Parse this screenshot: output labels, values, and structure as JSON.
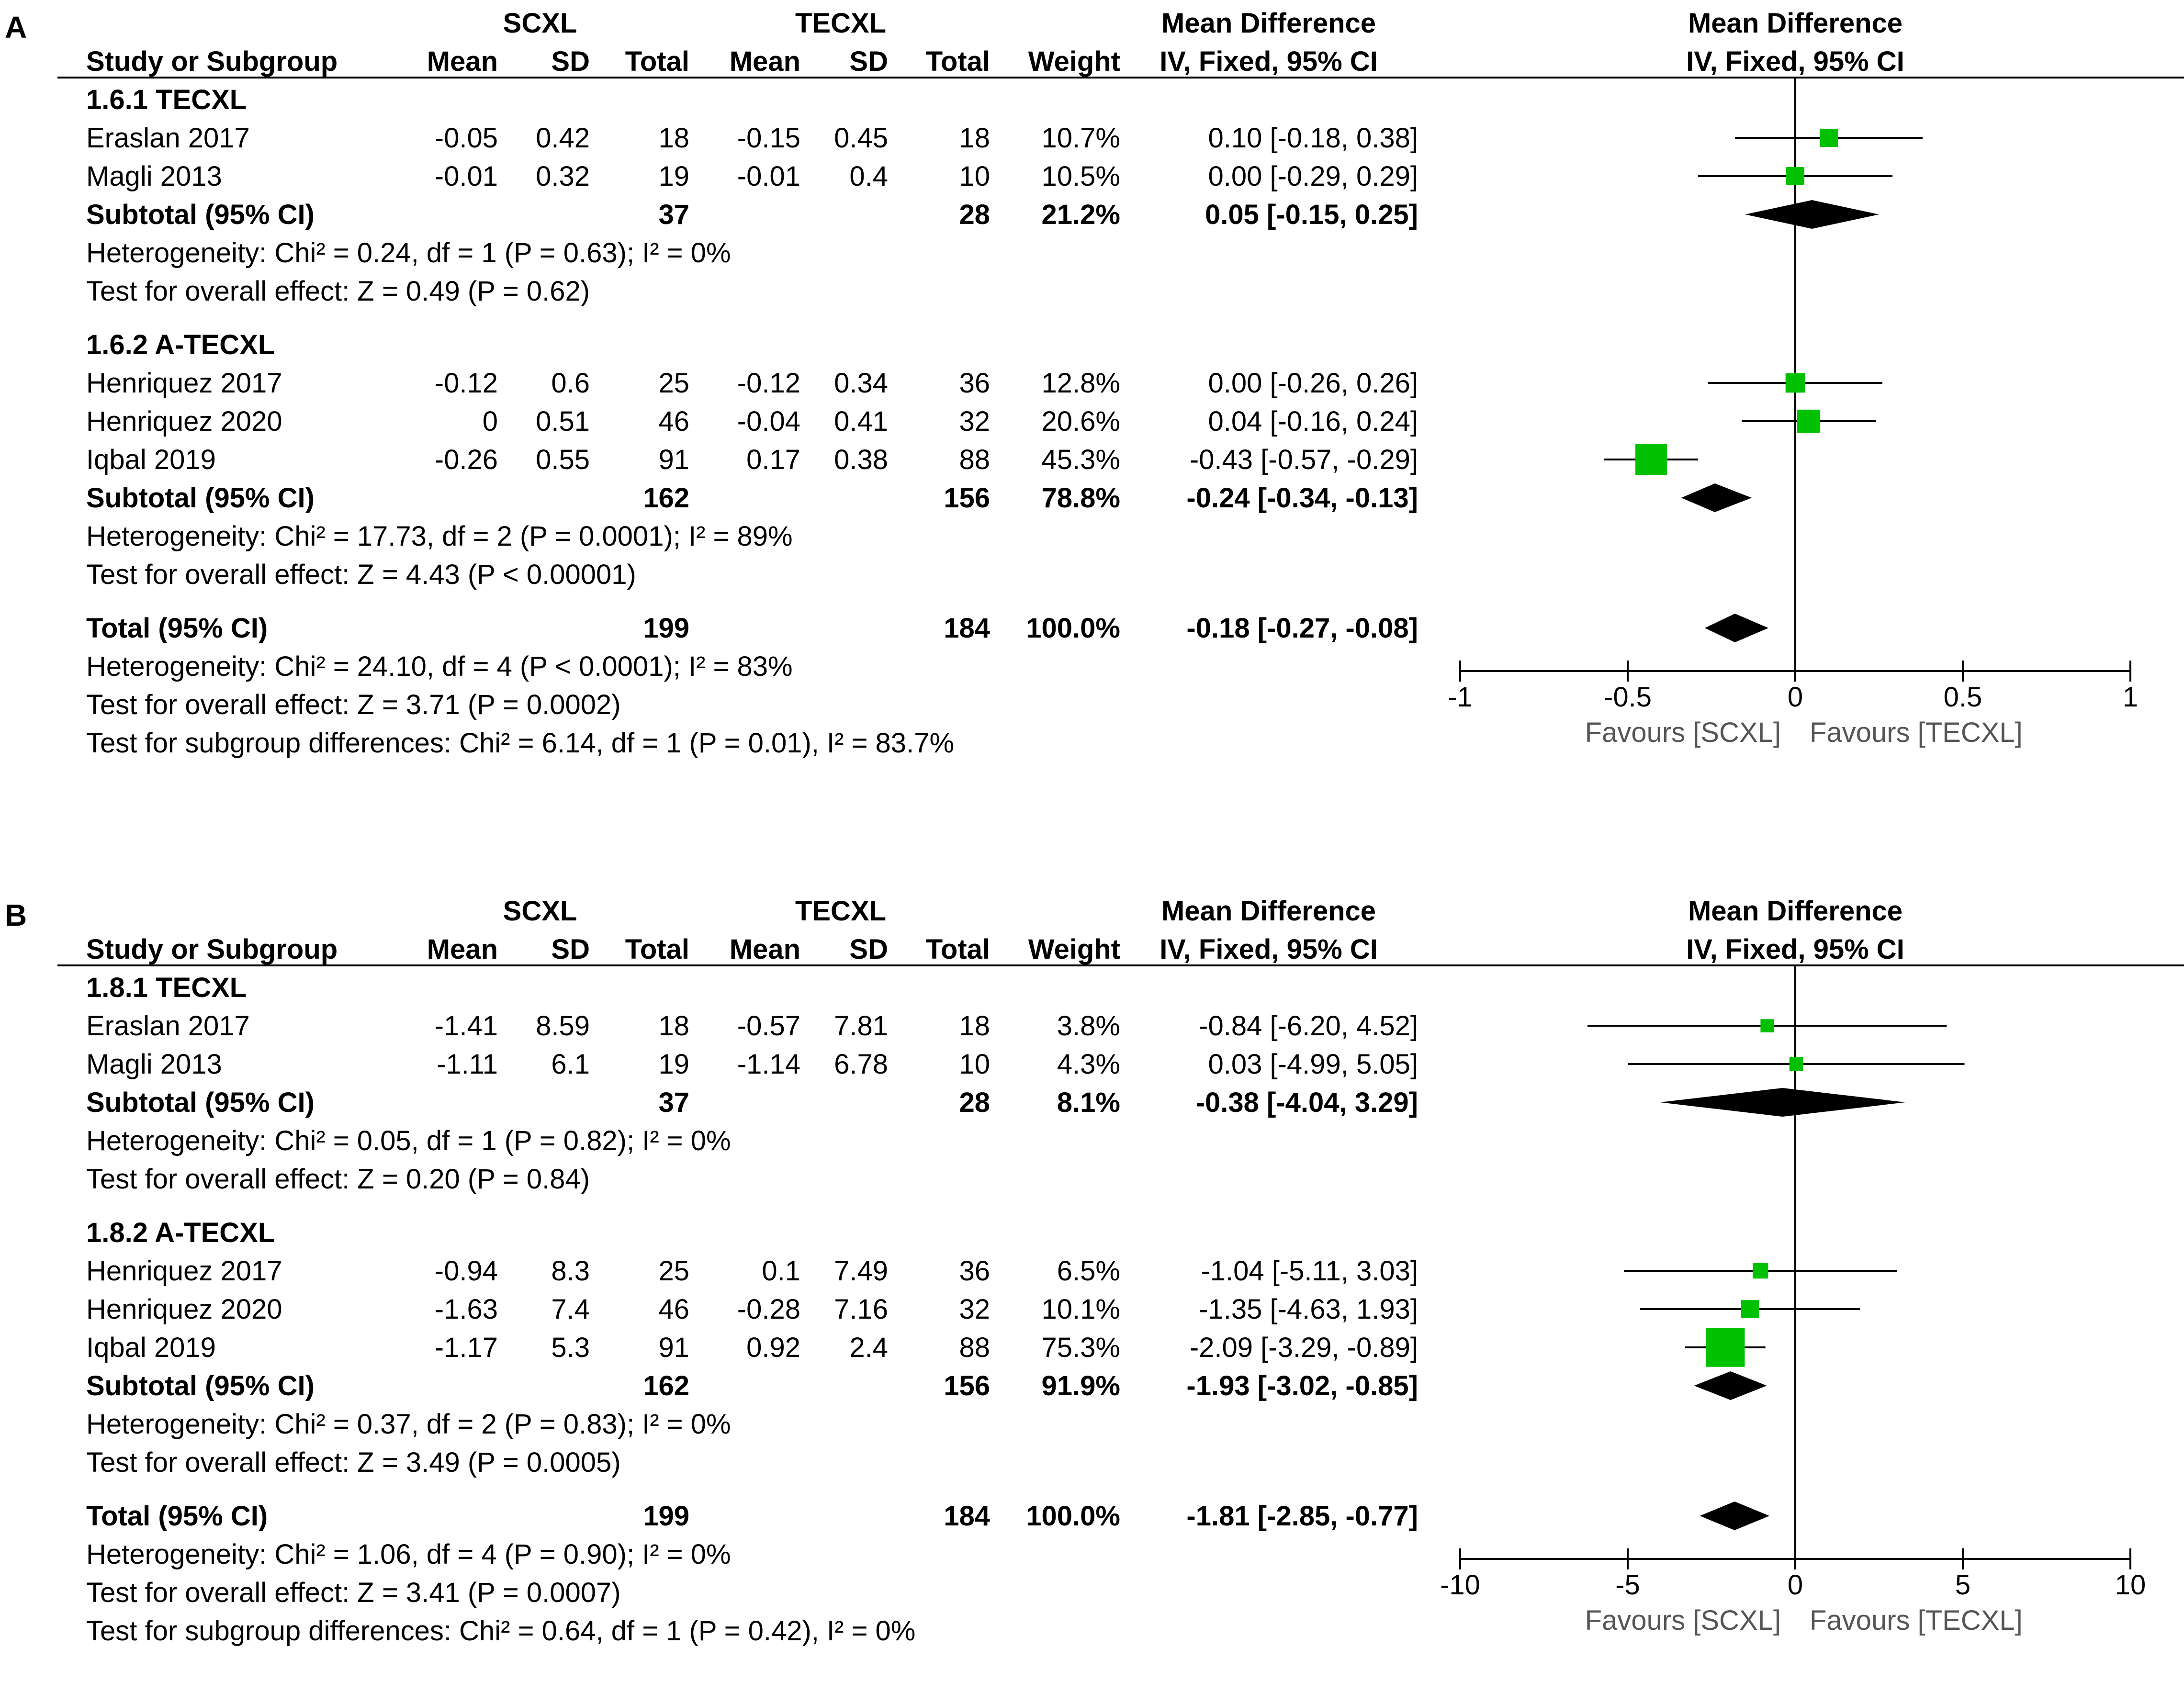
{
  "panels": [
    {
      "label": "A",
      "headers": {
        "group1": "SCXL",
        "group2": "TECXL",
        "md": "Mean Difference",
        "md_sub": "IV, Fixed, 95% CI",
        "plot": "Mean Difference",
        "plot_sub": "IV, Fixed, 95% CI",
        "study": "Study or Subgroup",
        "mean": "Mean",
        "sd": "SD",
        "total": "Total",
        "weight": "Weight"
      },
      "subgroups": [
        {
          "title": "1.6.1 TECXL",
          "studies": [
            {
              "name": "Eraslan 2017",
              "m1": "-0.05",
              "sd1": "0.42",
              "n1": "18",
              "m2": "-0.15",
              "sd2": "0.45",
              "n2": "18",
              "weight": "10.7%",
              "ci": "0.10 [-0.18, 0.38]",
              "est": 0.1,
              "lo": -0.18,
              "hi": 0.38,
              "w": 10.7
            },
            {
              "name": "Magli 2013",
              "m1": "-0.01",
              "sd1": "0.32",
              "n1": "19",
              "m2": "-0.01",
              "sd2": "0.4",
              "n2": "10",
              "weight": "10.5%",
              "ci": "0.00 [-0.29, 0.29]",
              "est": 0.0,
              "lo": -0.29,
              "hi": 0.29,
              "w": 10.5
            }
          ],
          "subtotal": {
            "label": "Subtotal (95% CI)",
            "n1": "37",
            "n2": "28",
            "weight": "21.2%",
            "ci": "0.05 [-0.15, 0.25]",
            "est": 0.05,
            "lo": -0.15,
            "hi": 0.25
          },
          "het": "Heterogeneity: Chi² = 0.24, df = 1 (P = 0.63); I² = 0%",
          "test": "Test for overall effect: Z = 0.49 (P = 0.62)"
        },
        {
          "title": "1.6.2 A-TECXL",
          "studies": [
            {
              "name": "Henriquez 2017",
              "m1": "-0.12",
              "sd1": "0.6",
              "n1": "25",
              "m2": "-0.12",
              "sd2": "0.34",
              "n2": "36",
              "weight": "12.8%",
              "ci": "0.00 [-0.26, 0.26]",
              "est": 0.0,
              "lo": -0.26,
              "hi": 0.26,
              "w": 12.8
            },
            {
              "name": "Henriquez 2020",
              "m1": "0",
              "sd1": "0.51",
              "n1": "46",
              "m2": "-0.04",
              "sd2": "0.41",
              "n2": "32",
              "weight": "20.6%",
              "ci": "0.04 [-0.16, 0.24]",
              "est": 0.04,
              "lo": -0.16,
              "hi": 0.24,
              "w": 20.6
            },
            {
              "name": "Iqbal 2019",
              "m1": "-0.26",
              "sd1": "0.55",
              "n1": "91",
              "m2": "0.17",
              "sd2": "0.38",
              "n2": "88",
              "weight": "45.3%",
              "ci": "-0.43 [-0.57, -0.29]",
              "est": -0.43,
              "lo": -0.57,
              "hi": -0.29,
              "w": 45.3
            }
          ],
          "subtotal": {
            "label": "Subtotal (95% CI)",
            "n1": "162",
            "n2": "156",
            "weight": "78.8%",
            "ci": "-0.24 [-0.34, -0.13]",
            "est": -0.24,
            "lo": -0.34,
            "hi": -0.13
          },
          "het": "Heterogeneity: Chi² = 17.73, df = 2 (P = 0.0001); I² = 89%",
          "test": "Test for overall effect: Z = 4.43 (P < 0.00001)"
        }
      ],
      "total": {
        "label": "Total (95% CI)",
        "n1": "199",
        "n2": "184",
        "weight": "100.0%",
        "ci": "-0.18 [-0.27, -0.08]",
        "est": -0.18,
        "lo": -0.27,
        "hi": -0.08
      },
      "total_het": "Heterogeneity: Chi² = 24.10, df = 4 (P < 0.0001); I² = 83%",
      "total_test": "Test for overall effect: Z = 3.71 (P = 0.0002)",
      "subgroup_diff": "Test for subgroup differences: Chi² = 6.14, df = 1 (P = 0.01), I² = 83.7%",
      "axis": {
        "min": -1,
        "max": 1,
        "ticks": [
          "-1",
          "-0.5",
          "0",
          "0.5",
          "1"
        ],
        "tick_values": [
          -1,
          -0.5,
          0,
          0.5,
          1
        ],
        "favours_left": "Favours [SCXL]",
        "favours_right": "Favours [TECXL]"
      }
    },
    {
      "label": "B",
      "headers": {
        "group1": "SCXL",
        "group2": "TECXL",
        "md": "Mean Difference",
        "md_sub": "IV, Fixed, 95% CI",
        "plot": "Mean Difference",
        "plot_sub": "IV, Fixed, 95% CI",
        "study": "Study or Subgroup",
        "mean": "Mean",
        "sd": "SD",
        "total": "Total",
        "weight": "Weight"
      },
      "subgroups": [
        {
          "title": "1.8.1 TECXL",
          "studies": [
            {
              "name": "Eraslan 2017",
              "m1": "-1.41",
              "sd1": "8.59",
              "n1": "18",
              "m2": "-0.57",
              "sd2": "7.81",
              "n2": "18",
              "weight": "3.8%",
              "ci": "-0.84 [-6.20, 4.52]",
              "est": -0.84,
              "lo": -6.2,
              "hi": 4.52,
              "w": 3.8
            },
            {
              "name": "Magli 2013",
              "m1": "-1.11",
              "sd1": "6.1",
              "n1": "19",
              "m2": "-1.14",
              "sd2": "6.78",
              "n2": "10",
              "weight": "4.3%",
              "ci": "0.03 [-4.99, 5.05]",
              "est": 0.03,
              "lo": -4.99,
              "hi": 5.05,
              "w": 4.3
            }
          ],
          "subtotal": {
            "label": "Subtotal (95% CI)",
            "n1": "37",
            "n2": "28",
            "weight": "8.1%",
            "ci": "-0.38 [-4.04, 3.29]",
            "est": -0.38,
            "lo": -4.04,
            "hi": 3.29
          },
          "het": "Heterogeneity: Chi² = 0.05, df = 1 (P = 0.82); I² = 0%",
          "test": "Test for overall effect: Z = 0.20 (P = 0.84)"
        },
        {
          "title": "1.8.2 A-TECXL",
          "studies": [
            {
              "name": "Henriquez 2017",
              "m1": "-0.94",
              "sd1": "8.3",
              "n1": "25",
              "m2": "0.1",
              "sd2": "7.49",
              "n2": "36",
              "weight": "6.5%",
              "ci": "-1.04 [-5.11, 3.03]",
              "est": -1.04,
              "lo": -5.11,
              "hi": 3.03,
              "w": 6.5
            },
            {
              "name": "Henriquez 2020",
              "m1": "-1.63",
              "sd1": "7.4",
              "n1": "46",
              "m2": "-0.28",
              "sd2": "7.16",
              "n2": "32",
              "weight": "10.1%",
              "ci": "-1.35 [-4.63, 1.93]",
              "est": -1.35,
              "lo": -4.63,
              "hi": 1.93,
              "w": 10.1
            },
            {
              "name": "Iqbal 2019",
              "m1": "-1.17",
              "sd1": "5.3",
              "n1": "91",
              "m2": "0.92",
              "sd2": "2.4",
              "n2": "88",
              "weight": "75.3%",
              "ci": "-2.09 [-3.29, -0.89]",
              "est": -2.09,
              "lo": -3.29,
              "hi": -0.89,
              "w": 75.3
            }
          ],
          "subtotal": {
            "label": "Subtotal (95% CI)",
            "n1": "162",
            "n2": "156",
            "weight": "91.9%",
            "ci": "-1.93 [-3.02, -0.85]",
            "est": -1.93,
            "lo": -3.02,
            "hi": -0.85
          },
          "het": "Heterogeneity: Chi² = 0.37, df = 2 (P = 0.83); I² = 0%",
          "test": "Test for overall effect: Z = 3.49 (P = 0.0005)"
        }
      ],
      "total": {
        "label": "Total (95% CI)",
        "n1": "199",
        "n2": "184",
        "weight": "100.0%",
        "ci": "-1.81 [-2.85, -0.77]",
        "est": -1.81,
        "lo": -2.85,
        "hi": -0.77
      },
      "total_het": "Heterogeneity: Chi² = 1.06, df = 4 (P = 0.90); I² = 0%",
      "total_test": "Test for overall effect: Z = 3.41 (P = 0.0007)",
      "subgroup_diff": "Test for subgroup differences: Chi² = 0.64, df = 1 (P = 0.42), I² = 0%",
      "axis": {
        "min": -10,
        "max": 10,
        "ticks": [
          "-10",
          "-5",
          "0",
          "5",
          "10"
        ],
        "tick_values": [
          -10,
          -5,
          0,
          5,
          10
        ],
        "favours_left": "Favours [SCXL]",
        "favours_right": "Favours [TECXL]"
      }
    }
  ],
  "colors": {
    "marker": "#00c000",
    "diamond": "#000000",
    "line": "#000000"
  },
  "chart_data": [
    {
      "type": "forest",
      "title": "A",
      "xlabel": "Mean Difference IV, Fixed, 95% CI",
      "xlim": [
        -1,
        1
      ],
      "series": [
        {
          "name": "Eraslan 2017",
          "est": 0.1,
          "lo": -0.18,
          "hi": 0.38
        },
        {
          "name": "Magli 2013",
          "est": 0.0,
          "lo": -0.29,
          "hi": 0.29
        },
        {
          "name": "Subtotal 1.6.1",
          "est": 0.05,
          "lo": -0.15,
          "hi": 0.25
        },
        {
          "name": "Henriquez 2017",
          "est": 0.0,
          "lo": -0.26,
          "hi": 0.26
        },
        {
          "name": "Henriquez 2020",
          "est": 0.04,
          "lo": -0.16,
          "hi": 0.24
        },
        {
          "name": "Iqbal 2019",
          "est": -0.43,
          "lo": -0.57,
          "hi": -0.29
        },
        {
          "name": "Subtotal 1.6.2",
          "est": -0.24,
          "lo": -0.34,
          "hi": -0.13
        },
        {
          "name": "Total",
          "est": -0.18,
          "lo": -0.27,
          "hi": -0.08
        }
      ]
    },
    {
      "type": "forest",
      "title": "B",
      "xlabel": "Mean Difference IV, Fixed, 95% CI",
      "xlim": [
        -10,
        10
      ],
      "series": [
        {
          "name": "Eraslan 2017",
          "est": -0.84,
          "lo": -6.2,
          "hi": 4.52
        },
        {
          "name": "Magli 2013",
          "est": 0.03,
          "lo": -4.99,
          "hi": 5.05
        },
        {
          "name": "Subtotal 1.8.1",
          "est": -0.38,
          "lo": -4.04,
          "hi": 3.29
        },
        {
          "name": "Henriquez 2017",
          "est": -1.04,
          "lo": -5.11,
          "hi": 3.03
        },
        {
          "name": "Henriquez 2020",
          "est": -1.35,
          "lo": -4.63,
          "hi": 1.93
        },
        {
          "name": "Iqbal 2019",
          "est": -2.09,
          "lo": -3.29,
          "hi": -0.89
        },
        {
          "name": "Subtotal 1.8.2",
          "est": -1.93,
          "lo": -3.02,
          "hi": -0.85
        },
        {
          "name": "Total",
          "est": -1.81,
          "lo": -2.85,
          "hi": -0.77
        }
      ]
    }
  ]
}
